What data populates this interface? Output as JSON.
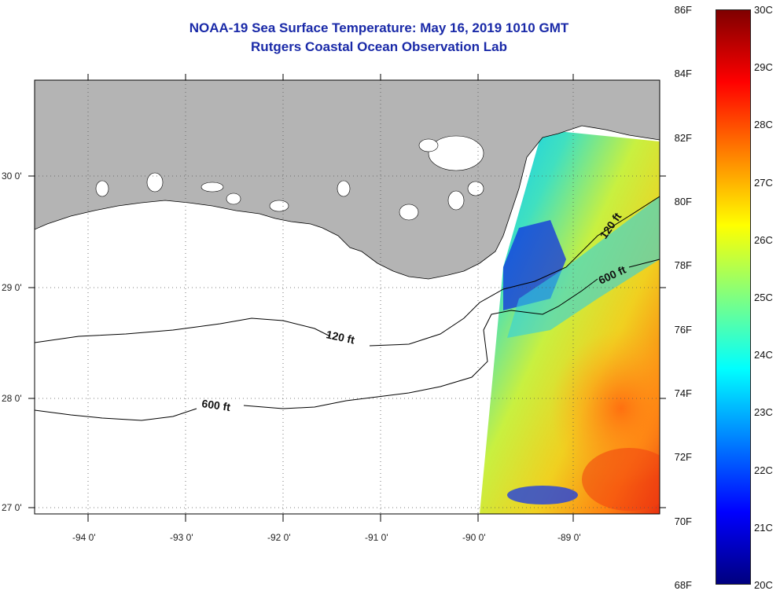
{
  "title": {
    "line1": "NOAA-19 Sea Surface Temperature:  May 16, 2019 1010 GMT",
    "line2": "Rutgers Coastal Ocean Observation Lab"
  },
  "colors": {
    "title": "#1a2aa8",
    "land": "#b4b4b4",
    "ocean_nodata": "#ffffff",
    "contour": "#000000"
  },
  "map": {
    "lat_labels": [
      "30 0'",
      "29 0'",
      "28 0'",
      "27 0'"
    ],
    "lon_labels": [
      "-94 0'",
      "-93 0'",
      "-92 0'",
      "-91 0'",
      "-90 0'",
      "-89 0'"
    ],
    "contour_labels": [
      "120 ft",
      "600 ft",
      "120 ft",
      "600 ft"
    ],
    "grid": "dotted"
  },
  "colorbar": {
    "fahrenheit": [
      "86F",
      "84F",
      "82F",
      "80F",
      "78F",
      "76F",
      "74F",
      "72F",
      "70F",
      "68F"
    ],
    "celsius": [
      "30C",
      "29C",
      "28C",
      "27C",
      "26C",
      "25C",
      "24C",
      "23C",
      "22C",
      "21C",
      "20C"
    ],
    "stops": [
      "#00007f",
      "#0000ff",
      "#0080ff",
      "#00ffff",
      "#80ff80",
      "#ffff00",
      "#ff8000",
      "#ff0000",
      "#7f0000"
    ]
  }
}
